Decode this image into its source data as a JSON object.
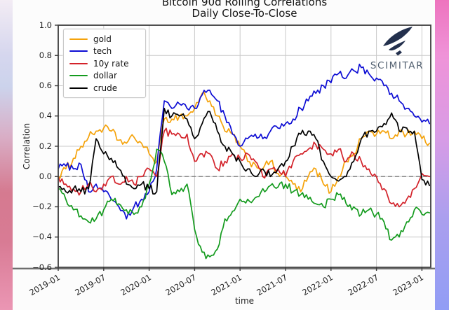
{
  "watermark": {
    "text": "SCIMITAR",
    "brand_color": "#23304d"
  },
  "chart_data": {
    "type": "line",
    "title": "Bitcoin 90d Rolling Correlations",
    "subtitle": "Daily Close-To-Close",
    "xlabel": "time",
    "ylabel": "Correlation",
    "ylim": [
      -0.6,
      1.0
    ],
    "yticks": [
      1.0,
      0.8,
      0.6,
      0.4,
      0.2,
      0.0,
      -0.2,
      -0.4,
      -0.6
    ],
    "ytick_labels": [
      "1.0",
      "0.8",
      "0.6",
      "0.4",
      "0.2",
      "0.0",
      "−0.2",
      "−0.4",
      "−0.6"
    ],
    "xtick_labels": [
      "2019-01",
      "2019-07",
      "2020-01",
      "2020-07",
      "2021-01",
      "2021-07",
      "2022-01",
      "2022-07",
      "2023-01"
    ],
    "x_start": "2019-01",
    "x_end": "2023-02",
    "x_unit": "month",
    "tick_every_months": 6,
    "grid": true,
    "zero_line": "dashed",
    "legend_position": "upper left",
    "series": [
      {
        "name": "gold",
        "color": "#f5a30b",
        "values": [
          0.0,
          0.05,
          0.12,
          0.2,
          0.26,
          0.3,
          0.32,
          0.3,
          0.24,
          0.22,
          0.26,
          0.22,
          0.15,
          0.1,
          0.38,
          0.38,
          0.4,
          0.4,
          0.45,
          0.55,
          0.5,
          0.4,
          0.3,
          0.28,
          0.2,
          0.1,
          0.08,
          0.05,
          0.1,
          0.02,
          0.0,
          -0.05,
          -0.1,
          0.0,
          0.05,
          -0.05,
          -0.1,
          0.0,
          0.1,
          0.15,
          0.25,
          0.3,
          0.28,
          0.3,
          0.25,
          0.3,
          0.28,
          0.3,
          0.25,
          0.22
        ]
      },
      {
        "name": "tech",
        "color": "#0d0dd4",
        "values": [
          0.05,
          0.07,
          0.05,
          0.08,
          -0.1,
          -0.05,
          -0.1,
          -0.15,
          -0.2,
          -0.28,
          -0.2,
          -0.15,
          -0.1,
          0.05,
          0.5,
          0.45,
          0.48,
          0.45,
          0.45,
          0.54,
          0.57,
          0.5,
          0.4,
          0.28,
          0.2,
          0.25,
          0.28,
          0.25,
          0.3,
          0.32,
          0.35,
          0.38,
          0.45,
          0.5,
          0.55,
          0.6,
          0.62,
          0.68,
          0.65,
          0.7,
          0.72,
          0.68,
          0.65,
          0.6,
          0.55,
          0.5,
          0.45,
          0.4,
          0.36,
          0.35
        ]
      },
      {
        "name": "10y rate",
        "color": "#d3222a",
        "values": [
          0.0,
          -0.05,
          -0.08,
          -0.1,
          -0.05,
          -0.1,
          -0.05,
          0.0,
          -0.05,
          0.0,
          -0.05,
          0.0,
          0.05,
          0.0,
          0.3,
          0.28,
          0.28,
          0.28,
          0.1,
          0.15,
          0.15,
          0.05,
          0.1,
          0.15,
          0.12,
          0.15,
          0.1,
          0.0,
          0.05,
          0.05,
          0.0,
          0.1,
          0.15,
          0.18,
          0.21,
          0.18,
          0.15,
          0.18,
          0.1,
          0.15,
          0.1,
          0.05,
          0.0,
          -0.08,
          -0.18,
          -0.2,
          -0.15,
          -0.08,
          0.02,
          0.0
        ]
      },
      {
        "name": "dollar",
        "color": "#149b1e",
        "values": [
          -0.08,
          -0.15,
          -0.22,
          -0.26,
          -0.3,
          -0.28,
          -0.22,
          -0.15,
          -0.18,
          -0.22,
          -0.25,
          -0.2,
          -0.05,
          0.18,
          0.1,
          -0.12,
          -0.1,
          -0.05,
          -0.35,
          -0.5,
          -0.53,
          -0.48,
          -0.28,
          -0.23,
          -0.15,
          -0.15,
          -0.14,
          -0.08,
          -0.06,
          -0.07,
          -0.05,
          -0.1,
          -0.12,
          -0.15,
          -0.18,
          -0.2,
          -0.15,
          -0.12,
          -0.18,
          -0.2,
          -0.25,
          -0.22,
          -0.25,
          -0.3,
          -0.42,
          -0.4,
          -0.3,
          -0.22,
          -0.25,
          -0.24
        ]
      },
      {
        "name": "crude",
        "color": "#000000",
        "values": [
          -0.07,
          -0.1,
          -0.08,
          -0.1,
          -0.08,
          0.25,
          0.15,
          0.12,
          0.05,
          -0.05,
          -0.08,
          -0.05,
          -0.08,
          -0.1,
          0.45,
          0.4,
          0.4,
          0.38,
          0.25,
          0.35,
          0.43,
          0.3,
          0.2,
          0.15,
          0.1,
          0.05,
          0.0,
          0.05,
          0.0,
          0.05,
          0.1,
          0.2,
          0.28,
          0.3,
          0.25,
          0.1,
          0.0,
          -0.03,
          0.0,
          0.1,
          0.25,
          0.3,
          0.3,
          0.35,
          0.42,
          0.3,
          0.32,
          0.3,
          -0.02,
          -0.06
        ]
      }
    ]
  }
}
